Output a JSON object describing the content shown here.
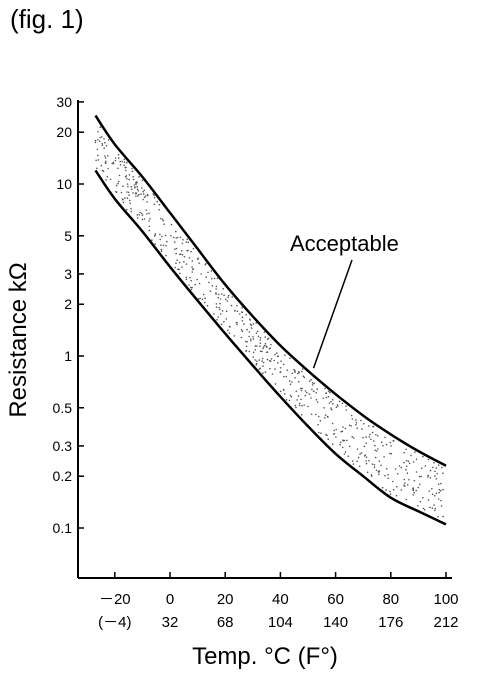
{
  "figure_label": "(fig. 1)",
  "chart_data": {
    "type": "line",
    "xlabel": "Temp. °C (F°)",
    "ylabel": "Resistance kΩ",
    "yscale": "log",
    "xlim": [
      -30,
      100
    ],
    "ylim": [
      0.05,
      30
    ],
    "x_ticks": [
      {
        "c": "－20",
        "f": "(－4)",
        "value": -20
      },
      {
        "c": "0",
        "f": "32",
        "value": 0
      },
      {
        "c": "20",
        "f": "68",
        "value": 20
      },
      {
        "c": "40",
        "f": "104",
        "value": 40
      },
      {
        "c": "60",
        "f": "140",
        "value": 60
      },
      {
        "c": "80",
        "f": "176",
        "value": 80
      },
      {
        "c": "100",
        "f": "212",
        "value": 100
      }
    ],
    "y_ticks": [
      {
        "label": "30",
        "value": 30
      },
      {
        "label": "20",
        "value": 20
      },
      {
        "label": "10",
        "value": 10
      },
      {
        "label": "5",
        "value": 5
      },
      {
        "label": "3",
        "value": 3
      },
      {
        "label": "2",
        "value": 2
      },
      {
        "label": "1",
        "value": 1
      },
      {
        "label": "0.5",
        "value": 0.5
      },
      {
        "label": "0.3",
        "value": 0.3
      },
      {
        "label": "0.2",
        "value": 0.2
      },
      {
        "label": "0.1",
        "value": 0.1
      }
    ],
    "series": [
      {
        "role": "upper",
        "x": [
          -27,
          -20,
          -10,
          0,
          10,
          20,
          30,
          40,
          50,
          60,
          70,
          80,
          90,
          100
        ],
        "y": [
          25,
          17,
          11,
          6.8,
          4.2,
          2.6,
          1.7,
          1.15,
          0.82,
          0.6,
          0.45,
          0.35,
          0.28,
          0.23
        ]
      },
      {
        "role": "lower",
        "x": [
          -27,
          -20,
          -10,
          0,
          10,
          20,
          30,
          40,
          50,
          60,
          70,
          80,
          90,
          100
        ],
        "y": [
          12,
          8.2,
          5.3,
          3.3,
          2.1,
          1.35,
          0.88,
          0.58,
          0.39,
          0.27,
          0.2,
          0.15,
          0.125,
          0.105
        ]
      }
    ],
    "annotations": [
      {
        "text": "Acceptable",
        "points_to": {
          "x": 52,
          "y": 0.85
        }
      }
    ],
    "grid": false,
    "legend": "none",
    "colors": {
      "line": "#000000",
      "band_stipple": "#555555"
    }
  }
}
